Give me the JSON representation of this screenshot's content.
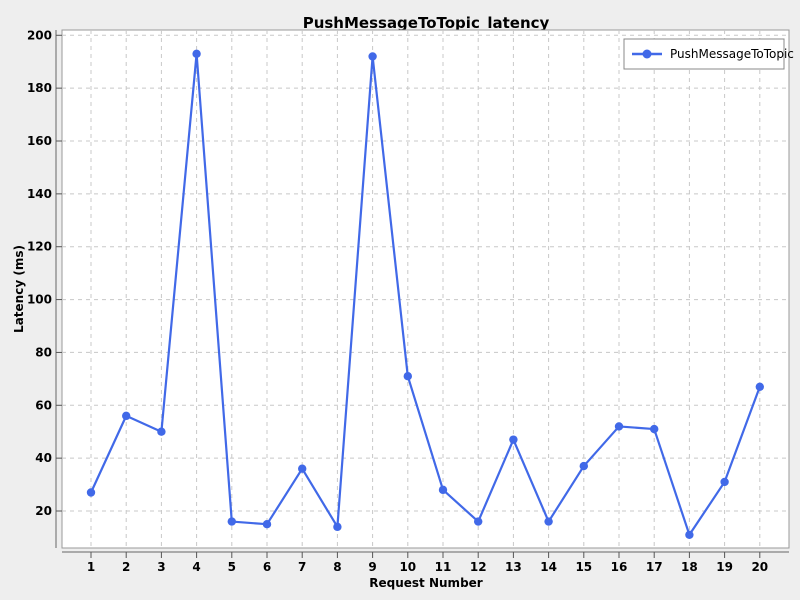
{
  "chart_data": {
    "type": "line",
    "title": "PushMessageToTopic_latency",
    "xlabel": "Request Number",
    "ylabel": "Latency (ms)",
    "categories": [
      "1",
      "2",
      "3",
      "4",
      "5",
      "6",
      "7",
      "8",
      "9",
      "10",
      "11",
      "12",
      "13",
      "14",
      "15",
      "16",
      "17",
      "18",
      "19",
      "20"
    ],
    "y_ticks": [
      20,
      40,
      60,
      80,
      100,
      120,
      140,
      160,
      180,
      200
    ],
    "ylim": [
      6,
      202
    ],
    "grid": true,
    "legend_position": "top-right",
    "series": [
      {
        "name": "PushMessageToTopic",
        "color": "#4169e8",
        "values": [
          27,
          56,
          50,
          193,
          16,
          15,
          36,
          14,
          192,
          71,
          28,
          16,
          47,
          16,
          37,
          52,
          51,
          11,
          31,
          67
        ]
      }
    ]
  }
}
